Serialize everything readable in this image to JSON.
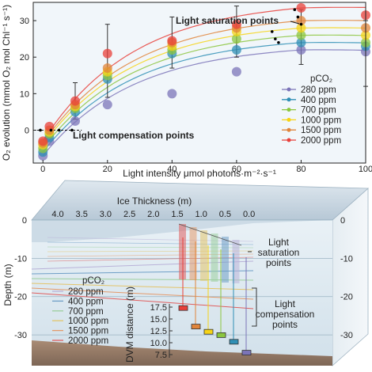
{
  "chart_data": [
    {
      "type": "scatter",
      "xlabel": "Light intensity μmol photons·m⁻²·s⁻¹",
      "ylabel": "O₂ evolution (mmol O₂ mol Chl⁻¹ s⁻¹)",
      "xlim": [
        -3,
        100
      ],
      "ylim": [
        -9,
        35
      ],
      "xticks": [
        "0",
        "20",
        "40",
        "60",
        "80",
        "100"
      ],
      "yticks": [
        "0",
        "10",
        "20",
        "30"
      ],
      "grid": false,
      "legend_position": "bottom-right",
      "legend_title": "pCO₂",
      "annotations": {
        "saturation": "Light saturation points",
        "compensation": "Light compensation points"
      },
      "x": [
        0,
        2,
        10,
        20,
        40,
        60,
        80,
        100
      ],
      "series": [
        {
          "name": "280 ppm",
          "color": "#7b74b8",
          "values": [
            -7,
            -3,
            2.5,
            7,
            10,
            16,
            22,
            21.5
          ]
        },
        {
          "name": "400 ppm",
          "color": "#2f8fb5",
          "values": [
            -6,
            -2,
            5,
            14,
            21,
            22,
            24,
            23
          ]
        },
        {
          "name": "700 ppm",
          "color": "#8cc63e",
          "values": [
            -5,
            -1,
            6,
            15,
            22,
            25,
            26,
            24
          ]
        },
        {
          "name": "1000 ppm",
          "color": "#f6d316",
          "values": [
            -4,
            -0.5,
            6.5,
            16,
            23,
            27,
            28,
            26
          ]
        },
        {
          "name": "1500 ppm",
          "color": "#e0843a",
          "values": [
            -3.5,
            0,
            7,
            17,
            24,
            28,
            30,
            28
          ]
        },
        {
          "name": "2000 ppm",
          "color": "#e8403a",
          "values": [
            -3,
            1,
            8,
            21,
            24.5,
            29,
            33.5,
            31.5
          ]
        }
      ],
      "error_bars": [
        {
          "x": 10,
          "low": 3,
          "high": 13
        },
        {
          "x": 20,
          "low": 9,
          "high": 29
        },
        {
          "x": 40,
          "low": 17,
          "high": 31
        },
        {
          "x": 60,
          "low": 20,
          "high": 34
        },
        {
          "x": 80,
          "low": 18,
          "high": 33
        },
        {
          "x": 100,
          "low": 12,
          "high": 30
        }
      ]
    },
    {
      "type": "diagram",
      "title": "Ice Thickness (m)",
      "ice_thickness_ticks": [
        "4.0",
        "3.5",
        "3.0",
        "2.5",
        "2.0",
        "1.5",
        "1.0",
        "0.5",
        "0.0"
      ],
      "depth_ticks": [
        "0",
        "-10",
        "-20",
        "-30"
      ],
      "depth_ticks_right": [
        "0",
        "-10",
        "-20",
        "-30"
      ],
      "depth_axis_label": "Depth (m)",
      "legend_title": "pCO₂",
      "legend": [
        {
          "name": "280 ppm",
          "color": "#b9b2d8"
        },
        {
          "name": "400 ppm",
          "color": "#6f9fc7"
        },
        {
          "name": "700 ppm",
          "color": "#9ccf9e"
        },
        {
          "name": "1000 ppm",
          "color": "#e3c46a"
        },
        {
          "name": "1500 ppm",
          "color": "#e39a6b"
        },
        {
          "name": "2000 ppm",
          "color": "#df5f5f"
        }
      ],
      "labels": {
        "saturation": [
          "Light",
          "saturation",
          "points"
        ],
        "compensation": [
          "Light",
          "compensation",
          "points"
        ]
      },
      "inset": {
        "ylabel": "DVM distance (m)",
        "yticks": [
          "17.5",
          "15.0",
          "12.5",
          "10.0",
          "7.5"
        ],
        "boxes": [
          {
            "name": "2000 ppm",
            "color": "#e8403a",
            "value": 17.3
          },
          {
            "name": "1500 ppm",
            "color": "#e0843a",
            "value": 13.4
          },
          {
            "name": "1000 ppm",
            "color": "#f6d316",
            "value": 12.3
          },
          {
            "name": "700 ppm",
            "color": "#8cc63e",
            "value": 11.6
          },
          {
            "name": "400 ppm",
            "color": "#2f8fb5",
            "value": 10.2
          },
          {
            "name": "280 ppm",
            "color": "#7b74b8",
            "value": 7.9
          }
        ]
      }
    }
  ]
}
